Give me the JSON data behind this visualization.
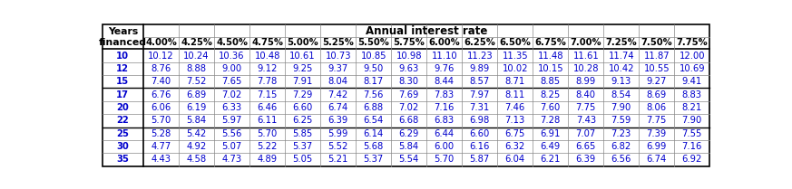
{
  "title": "Annual interest rate",
  "col_header_label1": "Years",
  "col_header_label2": "financed",
  "col_headers": [
    "4.00%",
    "4.25%",
    "4.50%",
    "4.75%",
    "5.00%",
    "5.25%",
    "5.50%",
    "5.75%",
    "6.00%",
    "6.25%",
    "6.50%",
    "6.75%",
    "7.00%",
    "7.25%",
    "7.50%",
    "7.75%"
  ],
  "rows": [
    {
      "year": 10,
      "values": [
        10.12,
        10.24,
        10.36,
        10.48,
        10.61,
        10.73,
        10.85,
        10.98,
        11.1,
        11.23,
        11.35,
        11.48,
        11.61,
        11.74,
        11.87,
        12.0
      ]
    },
    {
      "year": 12,
      "values": [
        8.76,
        8.88,
        9.0,
        9.12,
        9.25,
        9.37,
        9.5,
        9.63,
        9.76,
        9.89,
        10.02,
        10.15,
        10.28,
        10.42,
        10.55,
        10.69
      ]
    },
    {
      "year": 15,
      "values": [
        7.4,
        7.52,
        7.65,
        7.78,
        7.91,
        8.04,
        8.17,
        8.3,
        8.44,
        8.57,
        8.71,
        8.85,
        8.99,
        9.13,
        9.27,
        9.41
      ]
    },
    {
      "year": 17,
      "values": [
        6.76,
        6.89,
        7.02,
        7.15,
        7.29,
        7.42,
        7.56,
        7.69,
        7.83,
        7.97,
        8.11,
        8.25,
        8.4,
        8.54,
        8.69,
        8.83
      ]
    },
    {
      "year": 20,
      "values": [
        6.06,
        6.19,
        6.33,
        6.46,
        6.6,
        6.74,
        6.88,
        7.02,
        7.16,
        7.31,
        7.46,
        7.6,
        7.75,
        7.9,
        8.06,
        8.21
      ]
    },
    {
      "year": 22,
      "values": [
        5.7,
        5.84,
        5.97,
        6.11,
        6.25,
        6.39,
        6.54,
        6.68,
        6.83,
        6.98,
        7.13,
        7.28,
        7.43,
        7.59,
        7.75,
        7.9
      ]
    },
    {
      "year": 25,
      "values": [
        5.28,
        5.42,
        5.56,
        5.7,
        5.85,
        5.99,
        6.14,
        6.29,
        6.44,
        6.6,
        6.75,
        6.91,
        7.07,
        7.23,
        7.39,
        7.55
      ]
    },
    {
      "year": 30,
      "values": [
        4.77,
        4.92,
        5.07,
        5.22,
        5.37,
        5.52,
        5.68,
        5.84,
        6.0,
        6.16,
        6.32,
        6.49,
        6.65,
        6.82,
        6.99,
        7.16
      ]
    },
    {
      "year": 35,
      "values": [
        4.43,
        4.58,
        4.73,
        4.89,
        5.05,
        5.21,
        5.37,
        5.54,
        5.7,
        5.87,
        6.04,
        6.21,
        6.39,
        6.56,
        6.74,
        6.92
      ]
    }
  ],
  "group_sep_after": [
    2,
    5
  ],
  "header_bg": "#ffffff",
  "title_text_color": "#000000",
  "data_text_color": "#0000cc",
  "year_text_color": "#0000cc",
  "col_header_text_color": "#000000",
  "row_bg": "#ffffff",
  "border_color": "#000000",
  "thin_border_color": "#888888",
  "font_size": 7.2,
  "header_font_size": 7.8,
  "title_font_size": 8.5
}
